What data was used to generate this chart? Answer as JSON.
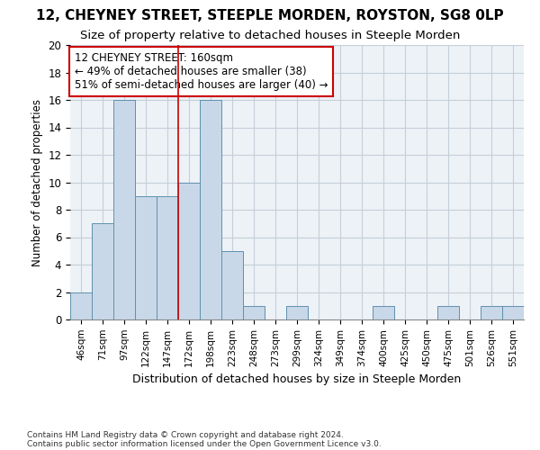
{
  "title1": "12, CHEYNEY STREET, STEEPLE MORDEN, ROYSTON, SG8 0LP",
  "title2": "Size of property relative to detached houses in Steeple Morden",
  "xlabel": "Distribution of detached houses by size in Steeple Morden",
  "ylabel": "Number of detached properties",
  "categories": [
    "46sqm",
    "71sqm",
    "97sqm",
    "122sqm",
    "147sqm",
    "172sqm",
    "198sqm",
    "223sqm",
    "248sqm",
    "273sqm",
    "299sqm",
    "324sqm",
    "349sqm",
    "374sqm",
    "400sqm",
    "425sqm",
    "450sqm",
    "475sqm",
    "501sqm",
    "526sqm",
    "551sqm"
  ],
  "values": [
    2,
    7,
    16,
    9,
    9,
    10,
    16,
    5,
    1,
    0,
    1,
    0,
    0,
    0,
    1,
    0,
    0,
    1,
    0,
    1,
    1
  ],
  "bar_color": "#c8d8e8",
  "bar_edge_color": "#6090b0",
  "vline_index": 4.5,
  "vline_color": "#cc0000",
  "annotation_line1": "12 CHEYNEY STREET: 160sqm",
  "annotation_line2": "← 49% of detached houses are smaller (38)",
  "annotation_line3": "51% of semi-detached houses are larger (40) →",
  "annotation_box_color": "#cc0000",
  "annotation_box_fill": "white",
  "ylim": [
    0,
    20
  ],
  "yticks": [
    0,
    2,
    4,
    6,
    8,
    10,
    12,
    14,
    16,
    18,
    20
  ],
  "footer1": "Contains HM Land Registry data © Crown copyright and database right 2024.",
  "footer2": "Contains public sector information licensed under the Open Government Licence v3.0.",
  "bg_color": "#edf2f7",
  "grid_color": "#c5cfd8",
  "title1_fontsize": 11,
  "title2_fontsize": 9.5
}
